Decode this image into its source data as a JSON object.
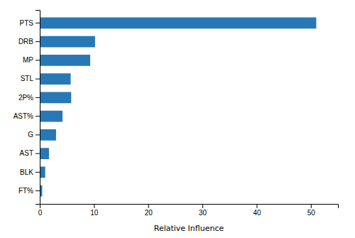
{
  "chart_data": {
    "type": "bar",
    "orientation": "horizontal",
    "categories": [
      "PTS",
      "DRB",
      "MP",
      "STL",
      "2P%",
      "AST%",
      "G",
      "AST",
      "BLK",
      "FT%"
    ],
    "values": [
      51.0,
      10.2,
      9.3,
      5.7,
      5.8,
      4.2,
      3.0,
      1.7,
      1.0,
      0.45
    ],
    "color": "#2878b5",
    "xlabel": "Relative Influence",
    "xlim": [
      0,
      55
    ],
    "xticks": [
      0,
      10,
      20,
      30,
      40,
      50
    ]
  }
}
